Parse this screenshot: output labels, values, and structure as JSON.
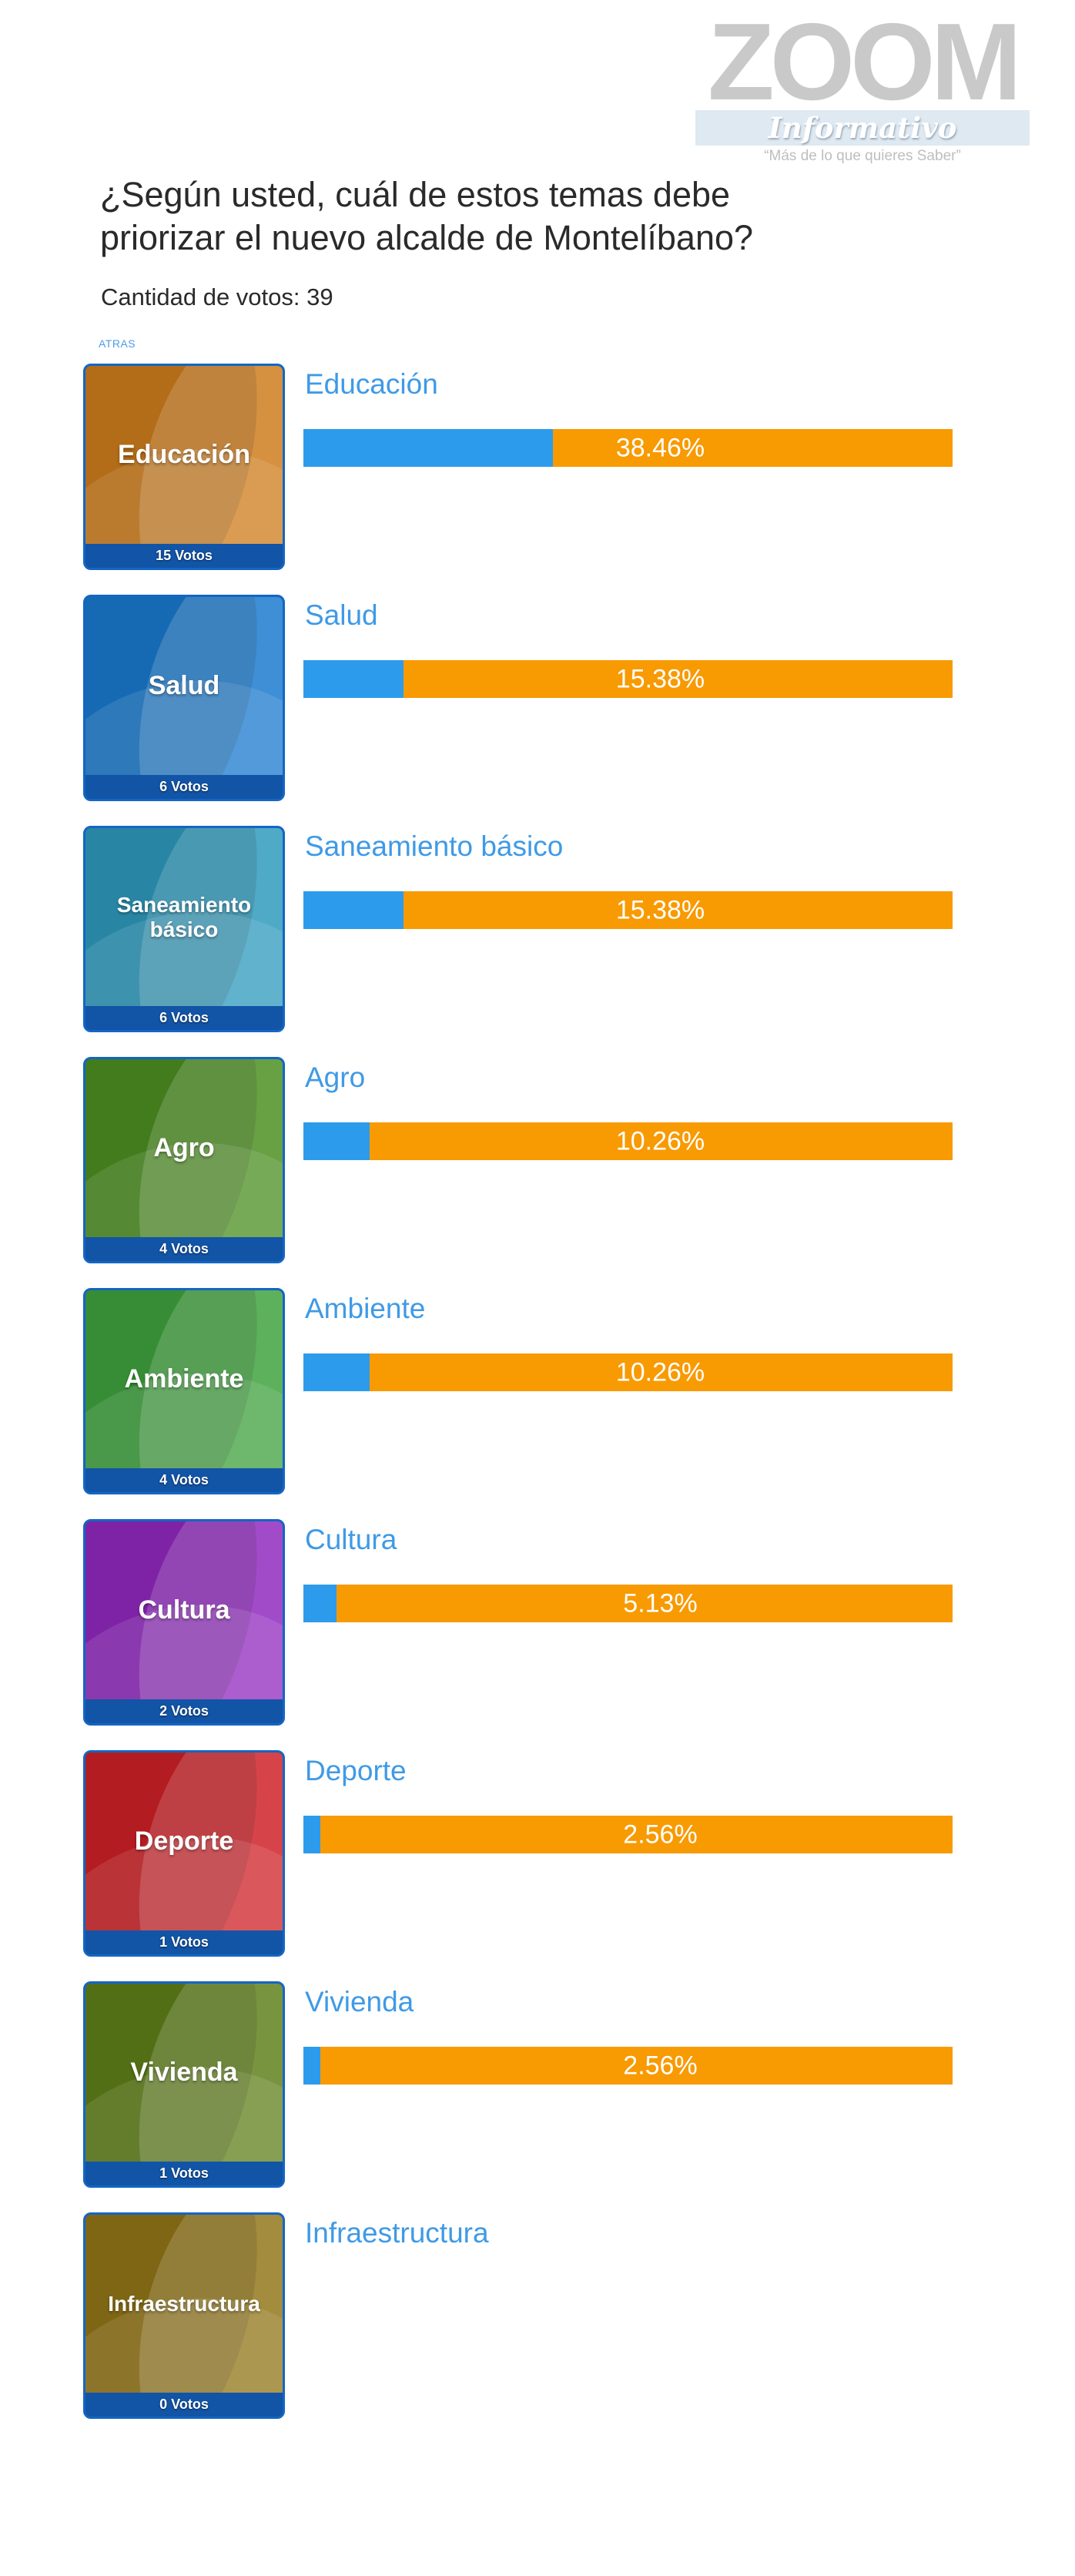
{
  "logo": {
    "zoom": "ZOOM",
    "informativo": "Informativo",
    "tagline": "“Más de lo que quieres Saber”"
  },
  "header": {
    "title_line1": "¿Según usted, cuál de estos temas debe",
    "title_line2": "priorizar el nuevo alcalde de Montelíbano?",
    "votes_total": "Cantidad de votos: 39",
    "back_link": "ATRAS"
  },
  "colors": {
    "bar_blue": "#2D9BEB",
    "bar_orange": "#F89A02",
    "category_label_blue": "#3F9AE6",
    "card_border_blue": "#1366C4",
    "card_footer_blue": "#1254A6"
  },
  "categories": [
    {
      "name": "Educación",
      "votes_label": "15 Votos",
      "pct": 38.46,
      "pct_label": "38.46%",
      "tile_color": "#CE7D1C"
    },
    {
      "name": "Salud",
      "votes_label": "6 Votos",
      "pct": 15.38,
      "pct_label": "15.38%",
      "tile_color": "#1A7ACE"
    },
    {
      "name": "Saneamiento básico",
      "votes_label": "6 Votos",
      "pct": 15.38,
      "pct_label": "15.38%",
      "tile_color": "#2E9ABD"
    },
    {
      "name": "Agro",
      "votes_label": "4 Votos",
      "pct": 10.26,
      "pct_label": "10.26%",
      "tile_color": "#4C8F21"
    },
    {
      "name": "Ambiente",
      "votes_label": "4 Votos",
      "pct": 10.26,
      "pct_label": "10.26%",
      "tile_color": "#3FA23D"
    },
    {
      "name": "Cultura",
      "votes_label": "2 Votos",
      "pct": 5.13,
      "pct_label": "5.13%",
      "tile_color": "#9129BF"
    },
    {
      "name": "Deporte",
      "votes_label": "1 Votos",
      "pct": 2.56,
      "pct_label": "2.56%",
      "tile_color": "#CE2127"
    },
    {
      "name": "Vivienda",
      "votes_label": "1 Votos",
      "pct": 2.56,
      "pct_label": "2.56%",
      "tile_color": "#60801A"
    },
    {
      "name": "Infraestructura",
      "votes_label": "0 Votos",
      "pct": 0,
      "pct_label": "",
      "tile_color": "#927618"
    }
  ],
  "chart_data": {
    "type": "bar",
    "title": "¿Según usted, cuál de estos temas debe priorizar el nuevo alcalde de Montelíbano?",
    "total_votes": 39,
    "categories": [
      "Educación",
      "Salud",
      "Saneamiento básico",
      "Agro",
      "Ambiente",
      "Cultura",
      "Deporte",
      "Vivienda",
      "Infraestructura"
    ],
    "values": [
      15,
      6,
      6,
      4,
      4,
      2,
      1,
      1,
      0
    ],
    "percentages": [
      38.46,
      15.38,
      15.38,
      10.26,
      10.26,
      5.13,
      2.56,
      2.56,
      0
    ],
    "xlabel": "",
    "ylabel": "",
    "legend": "none",
    "grid": false
  }
}
